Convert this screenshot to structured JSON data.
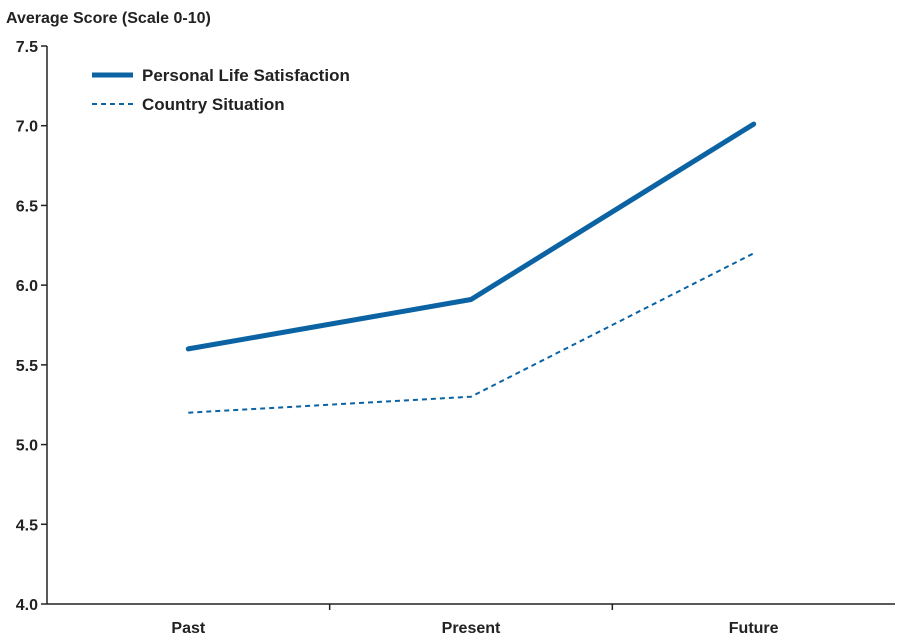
{
  "chart_data": {
    "type": "line",
    "title": "",
    "ylabel": "Average Score (Scale 0-10)",
    "xlabel": "",
    "categories": [
      "Past",
      "Present",
      "Future"
    ],
    "ylim": [
      4.0,
      7.5
    ],
    "yticks": [
      "4.0",
      "4.5",
      "5.0",
      "5.5",
      "6.0",
      "6.5",
      "7.0",
      "7.5"
    ],
    "grid": false,
    "legend_position": "top-left",
    "series": [
      {
        "name": "Personal Life Satisfaction",
        "values": [
          5.6,
          5.91,
          7.01
        ],
        "color": "#0b63a3",
        "style": "solid"
      },
      {
        "name": "Country Situation",
        "values": [
          5.2,
          5.3,
          6.2
        ],
        "color": "#0b63a3",
        "style": "dashed"
      }
    ]
  }
}
